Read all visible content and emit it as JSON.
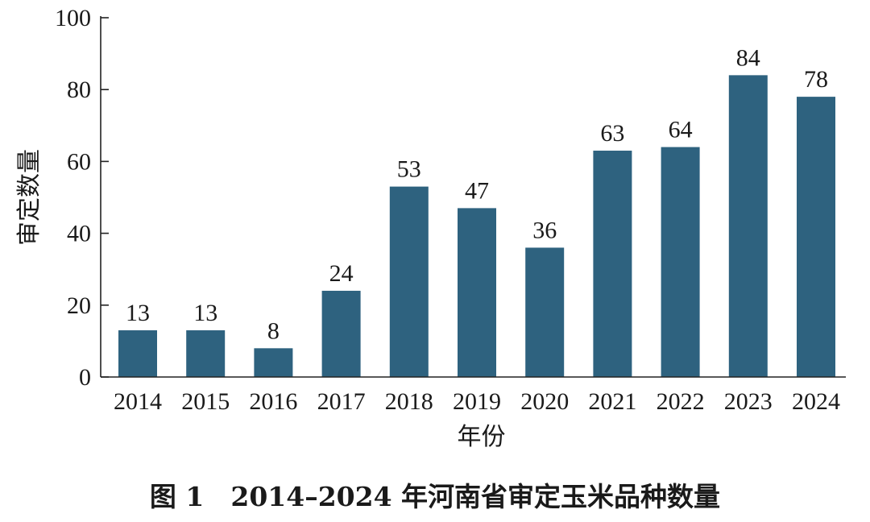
{
  "chart_data": {
    "type": "bar",
    "categories": [
      "2014",
      "2015",
      "2016",
      "2017",
      "2018",
      "2019",
      "2020",
      "2021",
      "2022",
      "2023",
      "2024"
    ],
    "values": [
      13,
      13,
      8,
      24,
      53,
      47,
      36,
      63,
      64,
      84,
      78
    ],
    "value_labels": [
      "13",
      "13",
      "8",
      "24",
      "53",
      "47",
      "36",
      "63",
      "64",
      "84",
      "78"
    ],
    "xlabel": "年份",
    "ylabel": "审定数量",
    "ylim": [
      0,
      100
    ],
    "yticks": [
      0,
      20,
      40,
      60,
      80,
      100
    ],
    "ytick_labels": [
      "0",
      "20",
      "40",
      "60",
      "80",
      "100"
    ],
    "grid": false,
    "bar_color": "#2e627f"
  },
  "caption": "图 1　2014–2024 年河南省审定玉米品种数量"
}
